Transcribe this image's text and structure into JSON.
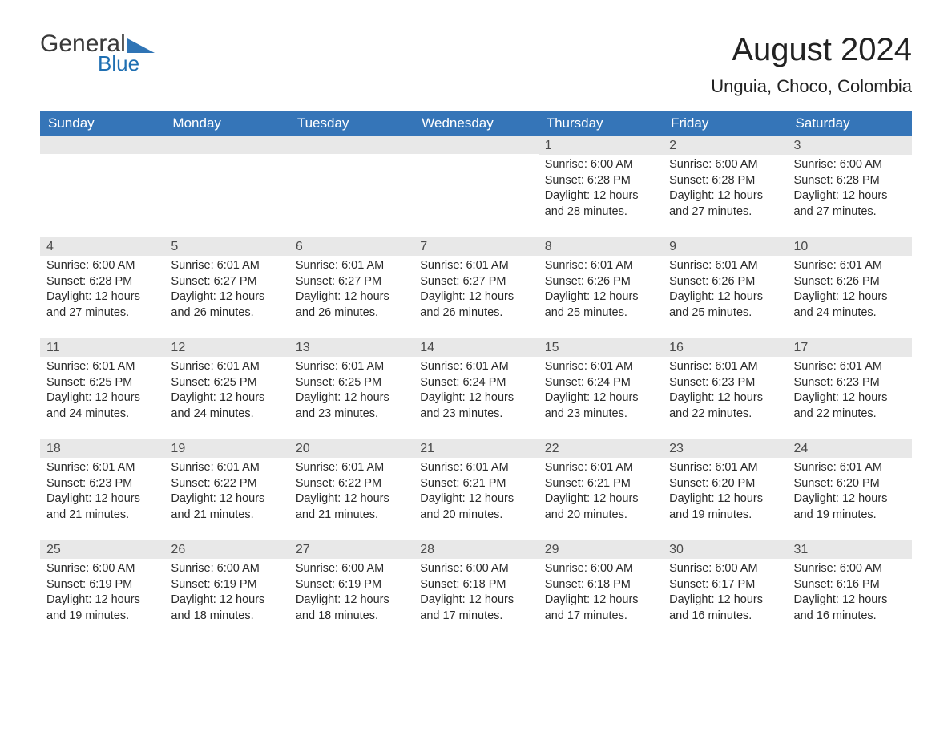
{
  "logo": {
    "text1": "General",
    "text2": "Blue",
    "triangle_color": "#2f74b5"
  },
  "title": "August 2024",
  "location": "Unguia, Choco, Colombia",
  "colors": {
    "header_bg": "#3575b8",
    "header_text": "#ffffff",
    "daynum_bg": "#e8e8e8",
    "row_border": "#3575b8",
    "body_text": "#2a2a2a",
    "page_bg": "#ffffff"
  },
  "typography": {
    "title_fontsize": 40,
    "location_fontsize": 22,
    "dayheader_fontsize": 17,
    "daynum_fontsize": 16,
    "body_fontsize": 14.5
  },
  "day_headers": [
    "Sunday",
    "Monday",
    "Tuesday",
    "Wednesday",
    "Thursday",
    "Friday",
    "Saturday"
  ],
  "weeks": [
    [
      {
        "empty": true
      },
      {
        "empty": true
      },
      {
        "empty": true
      },
      {
        "empty": true
      },
      {
        "num": "1",
        "sunrise": "Sunrise: 6:00 AM",
        "sunset": "Sunset: 6:28 PM",
        "day1": "Daylight: 12 hours",
        "day2": "and 28 minutes."
      },
      {
        "num": "2",
        "sunrise": "Sunrise: 6:00 AM",
        "sunset": "Sunset: 6:28 PM",
        "day1": "Daylight: 12 hours",
        "day2": "and 27 minutes."
      },
      {
        "num": "3",
        "sunrise": "Sunrise: 6:00 AM",
        "sunset": "Sunset: 6:28 PM",
        "day1": "Daylight: 12 hours",
        "day2": "and 27 minutes."
      }
    ],
    [
      {
        "num": "4",
        "sunrise": "Sunrise: 6:00 AM",
        "sunset": "Sunset: 6:28 PM",
        "day1": "Daylight: 12 hours",
        "day2": "and 27 minutes."
      },
      {
        "num": "5",
        "sunrise": "Sunrise: 6:01 AM",
        "sunset": "Sunset: 6:27 PM",
        "day1": "Daylight: 12 hours",
        "day2": "and 26 minutes."
      },
      {
        "num": "6",
        "sunrise": "Sunrise: 6:01 AM",
        "sunset": "Sunset: 6:27 PM",
        "day1": "Daylight: 12 hours",
        "day2": "and 26 minutes."
      },
      {
        "num": "7",
        "sunrise": "Sunrise: 6:01 AM",
        "sunset": "Sunset: 6:27 PM",
        "day1": "Daylight: 12 hours",
        "day2": "and 26 minutes."
      },
      {
        "num": "8",
        "sunrise": "Sunrise: 6:01 AM",
        "sunset": "Sunset: 6:26 PM",
        "day1": "Daylight: 12 hours",
        "day2": "and 25 minutes."
      },
      {
        "num": "9",
        "sunrise": "Sunrise: 6:01 AM",
        "sunset": "Sunset: 6:26 PM",
        "day1": "Daylight: 12 hours",
        "day2": "and 25 minutes."
      },
      {
        "num": "10",
        "sunrise": "Sunrise: 6:01 AM",
        "sunset": "Sunset: 6:26 PM",
        "day1": "Daylight: 12 hours",
        "day2": "and 24 minutes."
      }
    ],
    [
      {
        "num": "11",
        "sunrise": "Sunrise: 6:01 AM",
        "sunset": "Sunset: 6:25 PM",
        "day1": "Daylight: 12 hours",
        "day2": "and 24 minutes."
      },
      {
        "num": "12",
        "sunrise": "Sunrise: 6:01 AM",
        "sunset": "Sunset: 6:25 PM",
        "day1": "Daylight: 12 hours",
        "day2": "and 24 minutes."
      },
      {
        "num": "13",
        "sunrise": "Sunrise: 6:01 AM",
        "sunset": "Sunset: 6:25 PM",
        "day1": "Daylight: 12 hours",
        "day2": "and 23 minutes."
      },
      {
        "num": "14",
        "sunrise": "Sunrise: 6:01 AM",
        "sunset": "Sunset: 6:24 PM",
        "day1": "Daylight: 12 hours",
        "day2": "and 23 minutes."
      },
      {
        "num": "15",
        "sunrise": "Sunrise: 6:01 AM",
        "sunset": "Sunset: 6:24 PM",
        "day1": "Daylight: 12 hours",
        "day2": "and 23 minutes."
      },
      {
        "num": "16",
        "sunrise": "Sunrise: 6:01 AM",
        "sunset": "Sunset: 6:23 PM",
        "day1": "Daylight: 12 hours",
        "day2": "and 22 minutes."
      },
      {
        "num": "17",
        "sunrise": "Sunrise: 6:01 AM",
        "sunset": "Sunset: 6:23 PM",
        "day1": "Daylight: 12 hours",
        "day2": "and 22 minutes."
      }
    ],
    [
      {
        "num": "18",
        "sunrise": "Sunrise: 6:01 AM",
        "sunset": "Sunset: 6:23 PM",
        "day1": "Daylight: 12 hours",
        "day2": "and 21 minutes."
      },
      {
        "num": "19",
        "sunrise": "Sunrise: 6:01 AM",
        "sunset": "Sunset: 6:22 PM",
        "day1": "Daylight: 12 hours",
        "day2": "and 21 minutes."
      },
      {
        "num": "20",
        "sunrise": "Sunrise: 6:01 AM",
        "sunset": "Sunset: 6:22 PM",
        "day1": "Daylight: 12 hours",
        "day2": "and 21 minutes."
      },
      {
        "num": "21",
        "sunrise": "Sunrise: 6:01 AM",
        "sunset": "Sunset: 6:21 PM",
        "day1": "Daylight: 12 hours",
        "day2": "and 20 minutes."
      },
      {
        "num": "22",
        "sunrise": "Sunrise: 6:01 AM",
        "sunset": "Sunset: 6:21 PM",
        "day1": "Daylight: 12 hours",
        "day2": "and 20 minutes."
      },
      {
        "num": "23",
        "sunrise": "Sunrise: 6:01 AM",
        "sunset": "Sunset: 6:20 PM",
        "day1": "Daylight: 12 hours",
        "day2": "and 19 minutes."
      },
      {
        "num": "24",
        "sunrise": "Sunrise: 6:01 AM",
        "sunset": "Sunset: 6:20 PM",
        "day1": "Daylight: 12 hours",
        "day2": "and 19 minutes."
      }
    ],
    [
      {
        "num": "25",
        "sunrise": "Sunrise: 6:00 AM",
        "sunset": "Sunset: 6:19 PM",
        "day1": "Daylight: 12 hours",
        "day2": "and 19 minutes."
      },
      {
        "num": "26",
        "sunrise": "Sunrise: 6:00 AM",
        "sunset": "Sunset: 6:19 PM",
        "day1": "Daylight: 12 hours",
        "day2": "and 18 minutes."
      },
      {
        "num": "27",
        "sunrise": "Sunrise: 6:00 AM",
        "sunset": "Sunset: 6:19 PM",
        "day1": "Daylight: 12 hours",
        "day2": "and 18 minutes."
      },
      {
        "num": "28",
        "sunrise": "Sunrise: 6:00 AM",
        "sunset": "Sunset: 6:18 PM",
        "day1": "Daylight: 12 hours",
        "day2": "and 17 minutes."
      },
      {
        "num": "29",
        "sunrise": "Sunrise: 6:00 AM",
        "sunset": "Sunset: 6:18 PM",
        "day1": "Daylight: 12 hours",
        "day2": "and 17 minutes."
      },
      {
        "num": "30",
        "sunrise": "Sunrise: 6:00 AM",
        "sunset": "Sunset: 6:17 PM",
        "day1": "Daylight: 12 hours",
        "day2": "and 16 minutes."
      },
      {
        "num": "31",
        "sunrise": "Sunrise: 6:00 AM",
        "sunset": "Sunset: 6:16 PM",
        "day1": "Daylight: 12 hours",
        "day2": "and 16 minutes."
      }
    ]
  ]
}
